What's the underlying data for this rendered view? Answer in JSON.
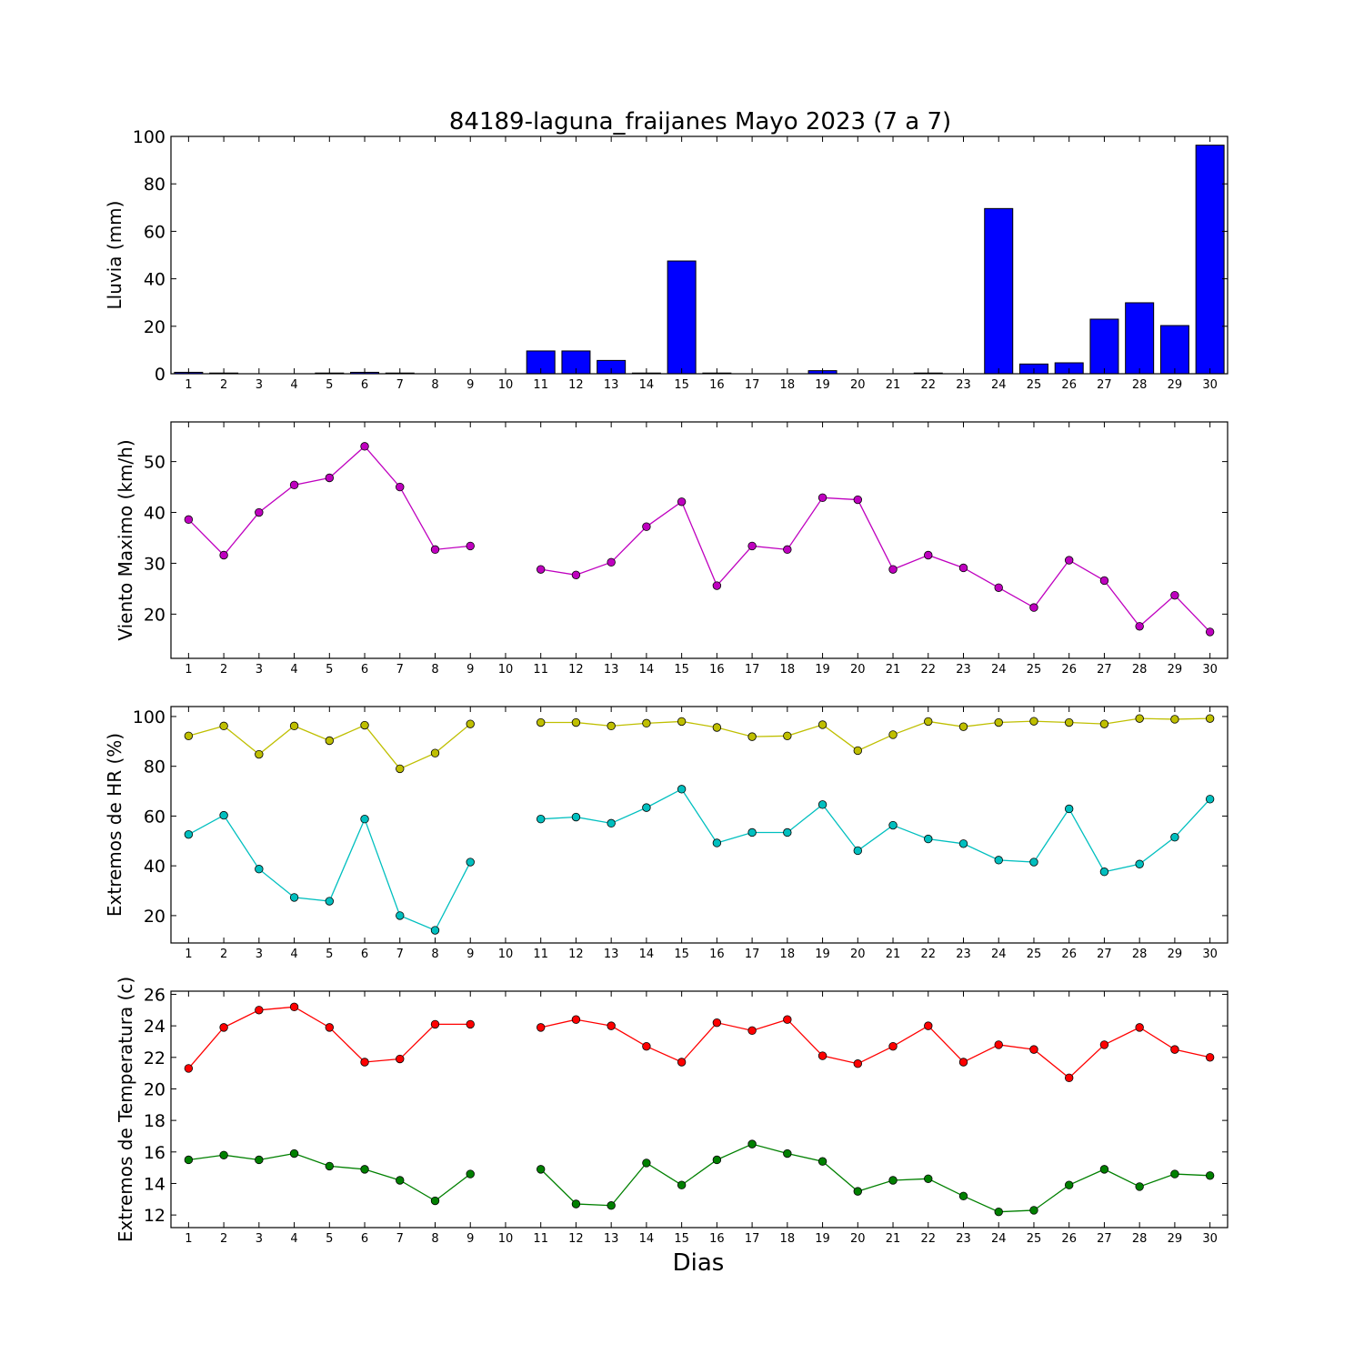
{
  "chart_data": {
    "title": "84189-laguna_fraijanes Mayo 2023  (7 a 7)",
    "xlabel": "Dias",
    "x": [
      1,
      2,
      3,
      4,
      5,
      6,
      7,
      8,
      9,
      10,
      11,
      12,
      13,
      14,
      15,
      16,
      17,
      18,
      19,
      20,
      21,
      22,
      23,
      24,
      25,
      26,
      27,
      28,
      29,
      30
    ],
    "panels": [
      {
        "type": "bar",
        "ylabel": "Lluvia (mm)",
        "ylim": [
          0,
          100
        ],
        "yticks": [
          0,
          20,
          40,
          60,
          80,
          100
        ],
        "color": "#0000ff",
        "series": [
          {
            "values": [
              0.6,
              0.3,
              0.0,
              0.0,
              0.3,
              0.6,
              0.3,
              0.0,
              0.0,
              0.0,
              9.6,
              9.6,
              5.6,
              0.3,
              47.5,
              0.3,
              0.0,
              0.0,
              1.3,
              0.0,
              0.0,
              0.3,
              0.0,
              69.6,
              4.1,
              4.6,
              23.0,
              29.9,
              20.3,
              96.3
            ]
          }
        ]
      },
      {
        "type": "line",
        "ylabel": "Viento Maximo (km/h)",
        "ylim": [
          11.3,
          57.8
        ],
        "yticks": [
          20,
          30,
          40,
          50
        ],
        "series": [
          {
            "color": "#bf00bf",
            "values": [
              38.6,
              31.6,
              40.0,
              45.4,
              46.8,
              53.0,
              45.0,
              32.7,
              33.4,
              null,
              28.8,
              27.7,
              30.2,
              37.2,
              42.1,
              25.6,
              33.4,
              32.7,
              42.9,
              42.5,
              28.8,
              31.6,
              29.1,
              25.2,
              21.3,
              30.6,
              26.6,
              17.6,
              23.7,
              16.5
            ]
          }
        ]
      },
      {
        "type": "line",
        "ylabel": "Extremos de HR (%)",
        "ylim": [
          9.0,
          104.0
        ],
        "yticks": [
          20,
          40,
          60,
          80,
          100
        ],
        "series": [
          {
            "color": "#bfbf00",
            "values": [
              92.2,
              96.2,
              84.8,
              96.2,
              90.3,
              96.5,
              79.0,
              85.3,
              97.0,
              null,
              97.6,
              97.6,
              96.2,
              97.3,
              98.0,
              95.6,
              91.9,
              92.2,
              96.7,
              86.3,
              92.7,
              98.0,
              95.9,
              97.6,
              98.1,
              97.6,
              97.0,
              99.2,
              98.9,
              99.2
            ]
          },
          {
            "color": "#00bfbf",
            "values": [
              52.6,
              60.3,
              38.7,
              27.3,
              25.8,
              58.8,
              20.0,
              14.1,
              41.5,
              null,
              58.8,
              59.6,
              57.1,
              63.4,
              70.8,
              49.2,
              53.4,
              53.4,
              64.6,
              46.1,
              56.3,
              50.8,
              48.9,
              42.3,
              41.5,
              62.9,
              37.6,
              40.7,
              51.5,
              66.8
            ]
          }
        ]
      },
      {
        "type": "line",
        "ylabel": "Extremos de Temperatura (c)",
        "ylim": [
          11.2,
          26.2
        ],
        "yticks": [
          12,
          14,
          16,
          18,
          20,
          22,
          24,
          26
        ],
        "series": [
          {
            "color": "#ff0000",
            "values": [
              21.3,
              23.9,
              25.0,
              25.2,
              23.9,
              21.7,
              21.9,
              24.1,
              24.1,
              null,
              23.9,
              24.4,
              24.0,
              22.7,
              21.7,
              24.2,
              23.7,
              24.4,
              22.1,
              21.6,
              22.7,
              24.0,
              21.7,
              22.8,
              22.5,
              20.7,
              22.8,
              23.9,
              22.5,
              22.0
            ]
          },
          {
            "color": "#008000",
            "values": [
              15.5,
              15.8,
              15.5,
              15.9,
              15.1,
              14.9,
              14.2,
              12.9,
              14.6,
              null,
              14.9,
              12.7,
              12.6,
              15.3,
              13.9,
              15.5,
              16.5,
              15.9,
              15.4,
              13.5,
              14.2,
              14.3,
              13.2,
              12.2,
              12.3,
              13.9,
              14.9,
              13.8,
              14.6,
              14.5
            ]
          }
        ]
      }
    ]
  }
}
